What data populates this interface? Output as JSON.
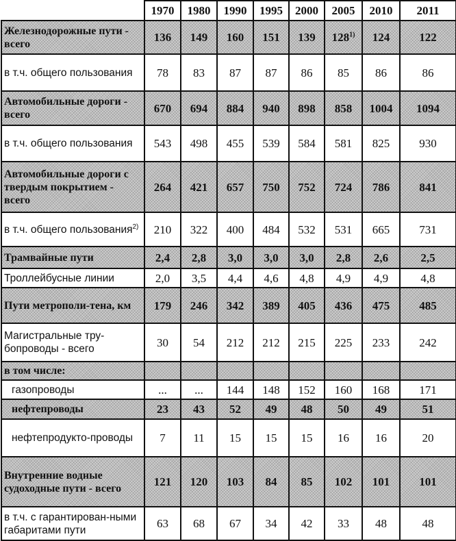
{
  "years": [
    "1970",
    "1980",
    "1990",
    "1995",
    "2000",
    "2005",
    "2010",
    "2011"
  ],
  "rows": [
    {
      "label": "Железнодорожные пути - всего",
      "values": [
        "136",
        "149",
        "160",
        "151",
        "139",
        "128",
        "124",
        "122"
      ],
      "shaded": true,
      "note_col": 5,
      "note": "1)"
    },
    {
      "label": "в т.ч. общего пользования",
      "values": [
        "78",
        "83",
        "87",
        "87",
        "86",
        "85",
        "86",
        "86"
      ],
      "shaded": false
    },
    {
      "label": "Автомобильные дороги - всего",
      "values": [
        "670",
        "694",
        "884",
        "940",
        "898",
        "858",
        "1004",
        "1094"
      ],
      "shaded": true
    },
    {
      "label": "в т.ч. общего пользования",
      "values": [
        "543",
        "498",
        "455",
        "539",
        "584",
        "581",
        "825",
        "930"
      ],
      "shaded": false
    },
    {
      "label": "Автомобильные дороги с твердым покрытием - всего",
      "values": [
        "264",
        "421",
        "657",
        "750",
        "752",
        "724",
        "786",
        "841"
      ],
      "shaded": true
    },
    {
      "label": "в т.ч. общего пользования",
      "label_note": "2)",
      "values": [
        "210",
        "322",
        "400",
        "484",
        "532",
        "531",
        "665",
        "731"
      ],
      "shaded": false
    },
    {
      "label": "Трамвайные пути",
      "values": [
        "2,4",
        "2,8",
        "3,0",
        "3,0",
        "3,0",
        "2,8",
        "2,6",
        "2,5"
      ],
      "shaded": true
    },
    {
      "label": "Троллейбусные линии",
      "values": [
        "2,0",
        "3,5",
        "4,4",
        "4,6",
        "4,8",
        "4,9",
        "4,9",
        "4,8"
      ],
      "shaded": false
    },
    {
      "label": "Пути метрополи-тена, км",
      "values": [
        "179",
        "246",
        "342",
        "389",
        "405",
        "436",
        "475",
        "485"
      ],
      "shaded": true
    },
    {
      "label": "Магистральные тру-бопроводы - всего",
      "values": [
        "30",
        "54",
        "212",
        "212",
        "215",
        "225",
        "233",
        "242"
      ],
      "shaded": false
    },
    {
      "label": "в том числе:",
      "values": [
        "",
        "",
        "",
        "",
        "",
        "",
        "",
        ""
      ],
      "shaded": true
    },
    {
      "label": "газопроводы",
      "values": [
        "...",
        "...",
        "144",
        "148",
        "152",
        "160",
        "168",
        "171"
      ],
      "shaded": false,
      "indent": true
    },
    {
      "label": "нефтепроводы",
      "values": [
        "23",
        "43",
        "52",
        "49",
        "48",
        "50",
        "49",
        "51"
      ],
      "shaded": true,
      "indent": true
    },
    {
      "label": "нефтепродукто-проводы",
      "values": [
        "7",
        "11",
        "15",
        "15",
        "15",
        "16",
        "16",
        "20"
      ],
      "shaded": false,
      "indent": true
    },
    {
      "label": "Внутренние водные судоходные пути - всего",
      "values": [
        "121",
        "120",
        "103",
        "84",
        "85",
        "102",
        "101",
        "101"
      ],
      "shaded": true
    },
    {
      "label": "в т.ч. с гарантирован-ными габаритами пути",
      "values": [
        "63",
        "68",
        "67",
        "34",
        "42",
        "33",
        "48",
        "48"
      ],
      "shaded": false
    }
  ]
}
